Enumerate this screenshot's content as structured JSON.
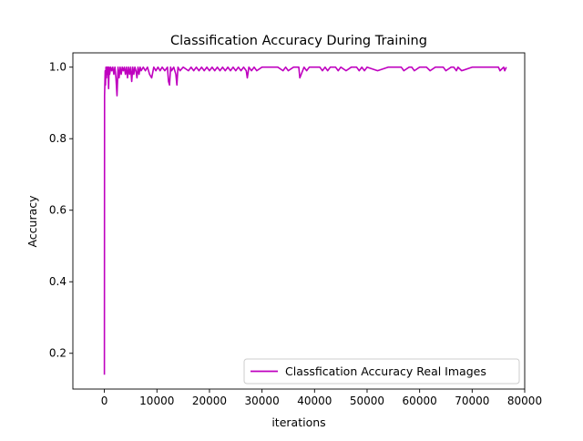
{
  "chart_data": {
    "type": "line",
    "title": "Classification Accuracy During Training",
    "xlabel": "iterations",
    "ylabel": "Accuracy",
    "xlim": [
      -6000,
      80000
    ],
    "ylim": [
      0.1,
      1.04
    ],
    "x_ticks": [
      0,
      10000,
      20000,
      30000,
      40000,
      50000,
      60000,
      70000,
      80000
    ],
    "x_tick_labels": [
      "0",
      "10000",
      "20000",
      "30000",
      "40000",
      "50000",
      "60000",
      "70000",
      "80000"
    ],
    "y_ticks": [
      0.2,
      0.4,
      0.6,
      0.8,
      1.0
    ],
    "y_tick_labels": [
      "0.2",
      "0.4",
      "0.6",
      "0.8",
      "1.0"
    ],
    "grid": false,
    "legend_position": "lower-right",
    "series": [
      {
        "name": "Classfication Accuracy Real Images",
        "color": "#bf00bf",
        "x": [
          0,
          30,
          100,
          150,
          200,
          300,
          400,
          500,
          600,
          700,
          800,
          900,
          1000,
          1200,
          1400,
          1600,
          1800,
          2000,
          2200,
          2400,
          2600,
          2800,
          3000,
          3200,
          3400,
          3600,
          3800,
          4000,
          4200,
          4400,
          4600,
          4800,
          5000,
          5200,
          5400,
          5600,
          5800,
          6000,
          6200,
          6400,
          6600,
          6800,
          7000,
          7400,
          7800,
          8200,
          8600,
          9000,
          9400,
          9800,
          10200,
          10600,
          11000,
          11500,
          12000,
          12200,
          12400,
          12600,
          12800,
          13200,
          13600,
          13800,
          14000,
          14400,
          15000,
          16000,
          16500,
          17000,
          17500,
          18000,
          18500,
          19000,
          19500,
          20000,
          20500,
          21000,
          21500,
          22000,
          22500,
          23000,
          23500,
          24000,
          24500,
          25000,
          25500,
          26000,
          26500,
          27000,
          27200,
          27500,
          28000,
          28500,
          29000,
          30000,
          31000,
          32000,
          33000,
          34000,
          34500,
          35000,
          36000,
          37000,
          37200,
          38000,
          38500,
          39000,
          40000,
          41000,
          41500,
          42000,
          42500,
          43000,
          44000,
          44500,
          45000,
          46000,
          47000,
          48000,
          48500,
          49000,
          49500,
          50000,
          52000,
          54000,
          56000,
          56500,
          57000,
          58000,
          58500,
          59000,
          60000,
          61000,
          61300,
          62000,
          63000,
          64000,
          64500,
          65000,
          66000,
          66500,
          67000,
          67300,
          68000,
          70000,
          72000,
          74000,
          75000,
          75300,
          76000,
          76200,
          76500
        ],
        "y": [
          0.14,
          0.92,
          0.96,
          0.99,
          0.95,
          1.0,
          0.97,
          1.0,
          0.98,
          1.0,
          0.94,
          1.0,
          0.98,
          1.0,
          0.99,
          1.0,
          0.98,
          1.0,
          0.97,
          0.92,
          1.0,
          0.97,
          1.0,
          0.98,
          1.0,
          0.99,
          1.0,
          0.98,
          1.0,
          0.97,
          1.0,
          0.98,
          1.0,
          0.96,
          1.0,
          0.98,
          1.0,
          0.99,
          0.97,
          1.0,
          0.98,
          1.0,
          0.99,
          1.0,
          0.99,
          1.0,
          0.98,
          0.97,
          1.0,
          0.99,
          1.0,
          0.99,
          1.0,
          0.99,
          1.0,
          0.96,
          0.95,
          1.0,
          0.99,
          1.0,
          0.98,
          0.95,
          1.0,
          0.99,
          1.0,
          0.99,
          1.0,
          0.99,
          1.0,
          0.99,
          1.0,
          0.99,
          1.0,
          0.99,
          1.0,
          0.99,
          1.0,
          0.99,
          1.0,
          0.99,
          1.0,
          0.99,
          1.0,
          0.99,
          1.0,
          0.99,
          1.0,
          0.99,
          0.97,
          1.0,
          0.99,
          1.0,
          0.99,
          1.0,
          1.0,
          1.0,
          1.0,
          0.99,
          1.0,
          0.99,
          1.0,
          1.0,
          0.97,
          1.0,
          0.99,
          1.0,
          1.0,
          1.0,
          0.99,
          1.0,
          0.99,
          1.0,
          1.0,
          0.99,
          1.0,
          0.99,
          1.0,
          1.0,
          0.99,
          1.0,
          0.99,
          1.0,
          0.99,
          1.0,
          1.0,
          1.0,
          0.99,
          1.0,
          1.0,
          0.99,
          1.0,
          1.0,
          1.0,
          0.99,
          1.0,
          1.0,
          1.0,
          0.99,
          1.0,
          1.0,
          0.99,
          1.0,
          0.99,
          1.0,
          1.0,
          1.0,
          1.0,
          0.99,
          1.0,
          0.99,
          1.0
        ]
      }
    ]
  }
}
